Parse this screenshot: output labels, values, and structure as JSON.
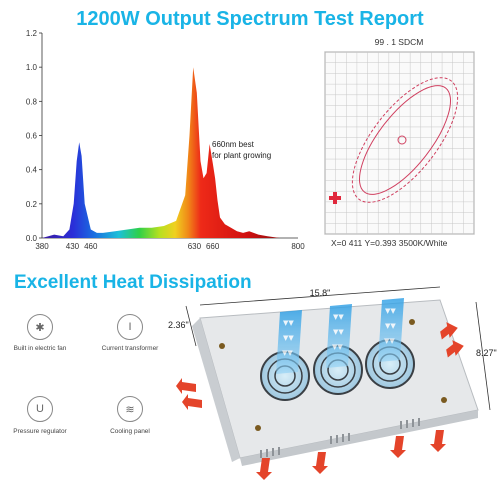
{
  "header": {
    "title": "1200W Output Spectrum Test Report"
  },
  "chart_data": {
    "type": "area",
    "title": "1200W Output Spectrum Test Report",
    "xlabel": "",
    "ylabel": "",
    "x_ticks": [
      380,
      430,
      460,
      630,
      660,
      800
    ],
    "y_ticks": [
      "0.0",
      "0.2",
      "0.4",
      "0.6",
      "0.8",
      "1.0",
      "1.2"
    ],
    "ylim": [
      0,
      1.2
    ],
    "xlim": [
      380,
      800
    ],
    "grid": false,
    "series": [
      {
        "x": [
          380,
          400,
          415,
          425,
          432,
          437,
          441,
          445,
          450,
          460,
          470,
          480,
          500,
          520,
          540,
          560,
          580,
          600,
          615,
          622,
          628,
          634,
          640,
          645,
          650,
          655,
          660,
          664,
          668,
          672,
          680,
          690,
          700,
          710,
          720,
          735,
          750,
          770,
          800
        ],
        "y": [
          0,
          0.02,
          0.01,
          0.05,
          0.2,
          0.45,
          0.56,
          0.48,
          0.2,
          0.05,
          0.03,
          0.03,
          0.04,
          0.05,
          0.06,
          0.06,
          0.07,
          0.1,
          0.25,
          0.6,
          1.0,
          0.85,
          0.45,
          0.35,
          0.38,
          0.55,
          0.44,
          0.35,
          0.22,
          0.12,
          0.08,
          0.06,
          0.04,
          0.03,
          0.04,
          0.02,
          0.01,
          0,
          0
        ]
      }
    ],
    "annotation": "660nm best\nfor plant growing"
  },
  "cie": {
    "caption_top": "99 . 1 SDCM",
    "caption_bottom": "X=0 411 Y=0.393 3500K/White",
    "marker_color": "#e0283c",
    "ellipse_color": "#d04060"
  },
  "heat": {
    "title": "Excellent Heat Dissipation",
    "dim_width": "15.8\"",
    "dim_depth": "2.36\"",
    "dim_height": "8.27\"",
    "arrow_color": "#e4442a",
    "flow_color": "#3aa7e6"
  },
  "features": [
    {
      "label": "Built in electric fan",
      "icon": "fan-icon",
      "glyph": "✱"
    },
    {
      "label": "Current transformer",
      "icon": "transformer-icon",
      "glyph": "I"
    },
    {
      "label": "Pressure regulator",
      "icon": "regulator-icon",
      "glyph": "U"
    },
    {
      "label": "Cooling panel",
      "icon": "cooling-panel-icon",
      "glyph": "≋"
    }
  ]
}
